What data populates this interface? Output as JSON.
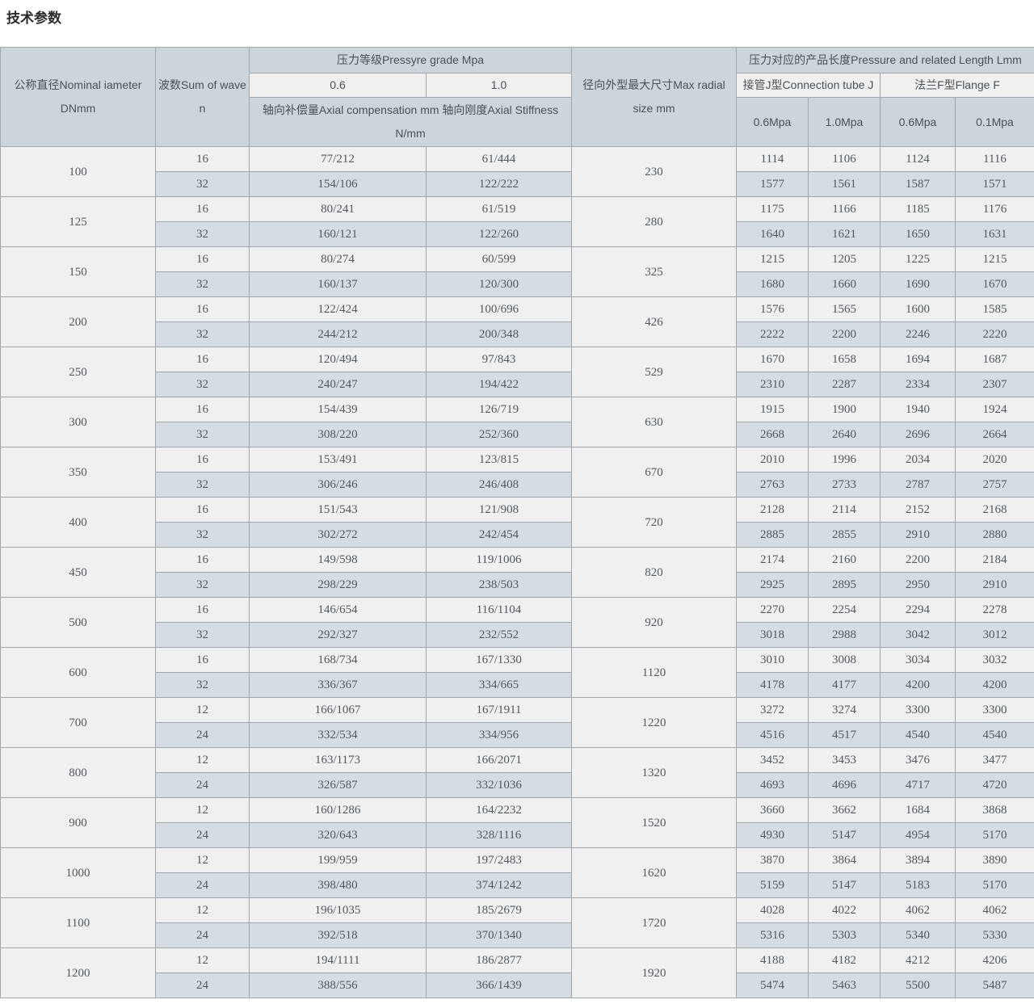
{
  "page_title": "技术参数",
  "colors": {
    "header_bg": "#ccd4dc",
    "subheader_light_bg": "#f0f0f0",
    "row_light_bg": "#f0f0f0",
    "row_accent_bg": "#d4dde4",
    "border": "#a2a7ac",
    "text": "#54585c",
    "title_text": "#2b2b2b"
  },
  "table": {
    "header": {
      "dn_line1": "公称直径Nominal iameter",
      "dn_line2": "DNmm",
      "waves_line1": "波数Sum of wave",
      "waves_line2": "n",
      "pressure_grade": "压力等级Pressyre grade Mpa",
      "grade_06": "0.6",
      "grade_10": "1.0",
      "axial_line1": "轴向补偿量Axial compensation mm 轴向刚度Axial Stiffness",
      "axial_line2": "N/mm",
      "radial_line1": "径向外型最大尺寸Max radial",
      "radial_line2": "size mm",
      "length_header": "压力对应的产品长度Pressure and related Length Lmm",
      "conn_tube": "接管J型Connection tube J",
      "flange": "法兰F型Flange F",
      "sub_cols": [
        "0.6Mpa",
        "1.0Mpa",
        "0.6Mpa",
        "0.1Mpa"
      ]
    },
    "rows": [
      {
        "dn": "100",
        "radial": "230",
        "subs": [
          {
            "n": "16",
            "comp06": "77/212",
            "comp10": "61/444",
            "len": [
              "1114",
              "1106",
              "1124",
              "1116"
            ]
          },
          {
            "n": "32",
            "comp06": "154/106",
            "comp10": "122/222",
            "len": [
              "1577",
              "1561",
              "1587",
              "1571"
            ]
          }
        ]
      },
      {
        "dn": "125",
        "radial": "280",
        "subs": [
          {
            "n": "16",
            "comp06": "80/241",
            "comp10": "61/519",
            "len": [
              "1175",
              "1166",
              "1185",
              "1176"
            ]
          },
          {
            "n": "32",
            "comp06": "160/121",
            "comp10": "122/260",
            "len": [
              "1640",
              "1621",
              "1650",
              "1631"
            ]
          }
        ]
      },
      {
        "dn": "150",
        "radial": "325",
        "subs": [
          {
            "n": "16",
            "comp06": "80/274",
            "comp10": "60/599",
            "len": [
              "1215",
              "1205",
              "1225",
              "1215"
            ]
          },
          {
            "n": "32",
            "comp06": "160/137",
            "comp10": "120/300",
            "len": [
              "1680",
              "1660",
              "1690",
              "1670"
            ]
          }
        ]
      },
      {
        "dn": "200",
        "radial": "426",
        "subs": [
          {
            "n": "16",
            "comp06": "122/424",
            "comp10": "100/696",
            "len": [
              "1576",
              "1565",
              "1600",
              "1585"
            ]
          },
          {
            "n": "32",
            "comp06": "244/212",
            "comp10": "200/348",
            "len": [
              "2222",
              "2200",
              "2246",
              "2220"
            ]
          }
        ]
      },
      {
        "dn": "250",
        "radial": "529",
        "subs": [
          {
            "n": "16",
            "comp06": "120/494",
            "comp10": "97/843",
            "len": [
              "1670",
              "1658",
              "1694",
              "1687"
            ]
          },
          {
            "n": "32",
            "comp06": "240/247",
            "comp10": "194/422",
            "len": [
              "2310",
              "2287",
              "2334",
              "2307"
            ]
          }
        ]
      },
      {
        "dn": "300",
        "radial": "630",
        "subs": [
          {
            "n": "16",
            "comp06": "154/439",
            "comp10": "126/719",
            "len": [
              "1915",
              "1900",
              "1940",
              "1924"
            ]
          },
          {
            "n": "32",
            "comp06": "308/220",
            "comp10": "252/360",
            "len": [
              "2668",
              "2640",
              "2696",
              "2664"
            ]
          }
        ]
      },
      {
        "dn": "350",
        "radial": "670",
        "subs": [
          {
            "n": "16",
            "comp06": "153/491",
            "comp10": "123/815",
            "len": [
              "2010",
              "1996",
              "2034",
              "2020"
            ]
          },
          {
            "n": "32",
            "comp06": "306/246",
            "comp10": "246/408",
            "len": [
              "2763",
              "2733",
              "2787",
              "2757"
            ]
          }
        ]
      },
      {
        "dn": "400",
        "radial": "720",
        "subs": [
          {
            "n": "16",
            "comp06": "151/543",
            "comp10": "121/908",
            "len": [
              "2128",
              "2114",
              "2152",
              "2168"
            ]
          },
          {
            "n": "32",
            "comp06": "302/272",
            "comp10": "242/454",
            "len": [
              "2885",
              "2855",
              "2910",
              "2880"
            ]
          }
        ]
      },
      {
        "dn": "450",
        "radial": "820",
        "subs": [
          {
            "n": "16",
            "comp06": "149/598",
            "comp10": "119/1006",
            "len": [
              "2174",
              "2160",
              "2200",
              "2184"
            ]
          },
          {
            "n": "32",
            "comp06": "298/229",
            "comp10": "238/503",
            "len": [
              "2925",
              "2895",
              "2950",
              "2910"
            ]
          }
        ]
      },
      {
        "dn": "500",
        "radial": "920",
        "subs": [
          {
            "n": "16",
            "comp06": "146/654",
            "comp10": "116/1104",
            "len": [
              "2270",
              "2254",
              "2294",
              "2278"
            ]
          },
          {
            "n": "32",
            "comp06": "292/327",
            "comp10": "232/552",
            "len": [
              "3018",
              "2988",
              "3042",
              "3012"
            ]
          }
        ]
      },
      {
        "dn": "600",
        "radial": "1120",
        "subs": [
          {
            "n": "16",
            "comp06": "168/734",
            "comp10": "167/1330",
            "len": [
              "3010",
              "3008",
              "3034",
              "3032"
            ]
          },
          {
            "n": "32",
            "comp06": "336/367",
            "comp10": "334/665",
            "len": [
              "4178",
              "4177",
              "4200",
              "4200"
            ]
          }
        ]
      },
      {
        "dn": "700",
        "radial": "1220",
        "subs": [
          {
            "n": "12",
            "comp06": "166/1067",
            "comp10": "167/1911",
            "len": [
              "3272",
              "3274",
              "3300",
              "3300"
            ]
          },
          {
            "n": "24",
            "comp06": "332/534",
            "comp10": "334/956",
            "len": [
              "4516",
              "4517",
              "4540",
              "4540"
            ]
          }
        ]
      },
      {
        "dn": "800",
        "radial": "1320",
        "subs": [
          {
            "n": "12",
            "comp06": "163/1173",
            "comp10": "166/2071",
            "len": [
              "3452",
              "3453",
              "3476",
              "3477"
            ]
          },
          {
            "n": "24",
            "comp06": "326/587",
            "comp10": "332/1036",
            "len": [
              "4693",
              "4696",
              "4717",
              "4720"
            ]
          }
        ]
      },
      {
        "dn": "900",
        "radial": "1520",
        "subs": [
          {
            "n": "12",
            "comp06": "160/1286",
            "comp10": "164/2232",
            "len": [
              "3660",
              "3662",
              "1684",
              "3868"
            ]
          },
          {
            "n": "24",
            "comp06": "320/643",
            "comp10": "328/1116",
            "len": [
              "4930",
              "5147",
              "4954",
              "5170"
            ]
          }
        ]
      },
      {
        "dn": "1000",
        "radial": "1620",
        "subs": [
          {
            "n": "12",
            "comp06": "199/959",
            "comp10": "197/2483",
            "len": [
              "3870",
              "3864",
              "3894",
              "3890"
            ]
          },
          {
            "n": "24",
            "comp06": "398/480",
            "comp10": "374/1242",
            "len": [
              "5159",
              "5147",
              "5183",
              "5170"
            ]
          }
        ]
      },
      {
        "dn": "1100",
        "radial": "1720",
        "subs": [
          {
            "n": "12",
            "comp06": "196/1035",
            "comp10": "185/2679",
            "len": [
              "4028",
              "4022",
              "4062",
              "4062"
            ]
          },
          {
            "n": "24",
            "comp06": "392/518",
            "comp10": "370/1340",
            "len": [
              "5316",
              "5303",
              "5340",
              "5330"
            ]
          }
        ]
      },
      {
        "dn": "1200",
        "radial": "1920",
        "subs": [
          {
            "n": "12",
            "comp06": "194/1111",
            "comp10": "186/2877",
            "len": [
              "4188",
              "4182",
              "4212",
              "4206"
            ]
          },
          {
            "n": "24",
            "comp06": "388/556",
            "comp10": "366/1439",
            "len": [
              "5474",
              "5463",
              "5500",
              "5487"
            ]
          }
        ]
      }
    ]
  }
}
